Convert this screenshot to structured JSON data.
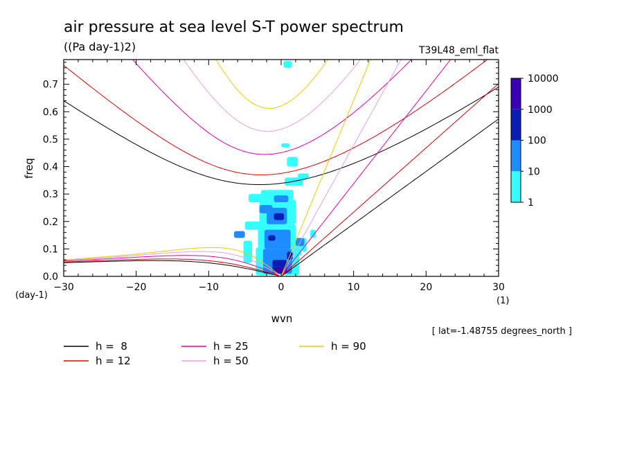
{
  "chart_data": {
    "type": "heatmap",
    "title": "air pressure at sea level S-T power spectrum",
    "units": "((Pa day-1)2)",
    "experiment": "T39L48_eml_flat",
    "xlabel": "wvn",
    "ylabel": "freq",
    "x_unit": "(1)",
    "y_unit": "(day-1)",
    "xlim": [
      -30,
      30
    ],
    "ylim": [
      0,
      0.79
    ],
    "x_ticks": [
      -30,
      -20,
      -10,
      0,
      10,
      20,
      30
    ],
    "y_ticks": [
      0.0,
      0.1,
      0.2,
      0.3,
      0.4,
      0.5,
      0.6,
      0.7
    ],
    "annotation": "[ lat=-1.48755 degrees_north ]",
    "colorbar": {
      "scale": "log",
      "levels": [
        "1",
        "10",
        "100",
        "1000",
        "10000"
      ],
      "colors": [
        "#33ffff",
        "#1e8cff",
        "#0a1eb4",
        "#3c00b4"
      ]
    },
    "grid": false,
    "legend": {
      "placement": "below",
      "entries": [
        {
          "label": "h =  8",
          "color": "#000000"
        },
        {
          "label": "h = 12",
          "color": "#e00000"
        },
        {
          "label": "h = 25",
          "color": "#e000b0"
        },
        {
          "label": "h = 50",
          "color": "#e8a0e0"
        },
        {
          "label": "h = 90",
          "color": "#f0c800"
        }
      ]
    },
    "dispersion_curves": {
      "equivalent_depths_m": [
        8,
        12,
        25,
        50,
        90
      ],
      "families": [
        "eastward inertio-gravity",
        "westward inertio-gravity",
        "Kelvin",
        "Rossby"
      ]
    },
    "spectrum_patches": [
      {
        "x": -5.2,
        "w": 1.2,
        "y": 0.05,
        "h": 0.08,
        "level": 0
      },
      {
        "x": -5.0,
        "w": 2.5,
        "y": 0.17,
        "h": 0.03,
        "level": 0
      },
      {
        "x": -4.5,
        "w": 2.5,
        "y": 0.27,
        "h": 0.03,
        "level": 0
      },
      {
        "x": -3.5,
        "w": 6.0,
        "y": 0.005,
        "h": 0.1,
        "level": 0
      },
      {
        "x": -3.2,
        "w": 5.2,
        "y": 0.1,
        "h": 0.09,
        "level": 0
      },
      {
        "x": -3.0,
        "w": 5.0,
        "y": 0.19,
        "h": 0.09,
        "level": 0
      },
      {
        "x": -2.8,
        "w": 4.5,
        "y": 0.28,
        "h": 0.035,
        "level": 0
      },
      {
        "x": 0.5,
        "w": 2.5,
        "y": 0.33,
        "h": 0.03,
        "level": 0
      },
      {
        "x": 0.8,
        "w": 2.0,
        "y": 0.075,
        "h": 0.04,
        "level": 0
      },
      {
        "x": 2.8,
        "w": 0.7,
        "y": 0.09,
        "h": 0.05,
        "level": 0
      },
      {
        "x": 4.0,
        "w": 0.8,
        "y": 0.14,
        "h": 0.03,
        "level": 0
      },
      {
        "x": 0.3,
        "w": 1.2,
        "y": 0.76,
        "h": 0.025,
        "level": 0
      },
      {
        "x": 0.8,
        "w": 1.5,
        "y": 0.4,
        "h": 0.035,
        "level": 0
      },
      {
        "x": 0.0,
        "w": 1.2,
        "y": 0.47,
        "h": 0.015,
        "level": 0
      },
      {
        "x": 2.3,
        "w": 1.5,
        "y": 0.355,
        "h": 0.02,
        "level": 0
      },
      {
        "x": 1.0,
        "w": 1.5,
        "y": 0.005,
        "h": 0.05,
        "level": 0
      },
      {
        "x": -2.5,
        "w": 4.0,
        "y": 0.01,
        "h": 0.09,
        "level": 1
      },
      {
        "x": -2.3,
        "w": 3.6,
        "y": 0.1,
        "h": 0.07,
        "level": 1
      },
      {
        "x": -2.0,
        "w": 2.8,
        "y": 0.19,
        "h": 0.06,
        "level": 1
      },
      {
        "x": -3.0,
        "w": 1.8,
        "y": 0.23,
        "h": 0.03,
        "level": 1
      },
      {
        "x": -1.0,
        "w": 2.0,
        "y": 0.27,
        "h": 0.025,
        "level": 1
      },
      {
        "x": -6.5,
        "w": 1.5,
        "y": 0.14,
        "h": 0.025,
        "level": 1
      },
      {
        "x": 2.0,
        "w": 1.2,
        "y": 0.11,
        "h": 0.03,
        "level": 1
      },
      {
        "x": -1.2,
        "w": 2.0,
        "y": 0.01,
        "h": 0.05,
        "level": 2
      },
      {
        "x": -1.0,
        "w": 1.4,
        "y": 0.205,
        "h": 0.025,
        "level": 2
      },
      {
        "x": -1.8,
        "w": 1.0,
        "y": 0.13,
        "h": 0.02,
        "level": 2
      },
      {
        "x": 0.8,
        "w": 0.8,
        "y": 0.06,
        "h": 0.03,
        "level": 2
      },
      {
        "x": -0.6,
        "w": 0.9,
        "y": 0.015,
        "h": 0.02,
        "level": 3
      }
    ]
  }
}
